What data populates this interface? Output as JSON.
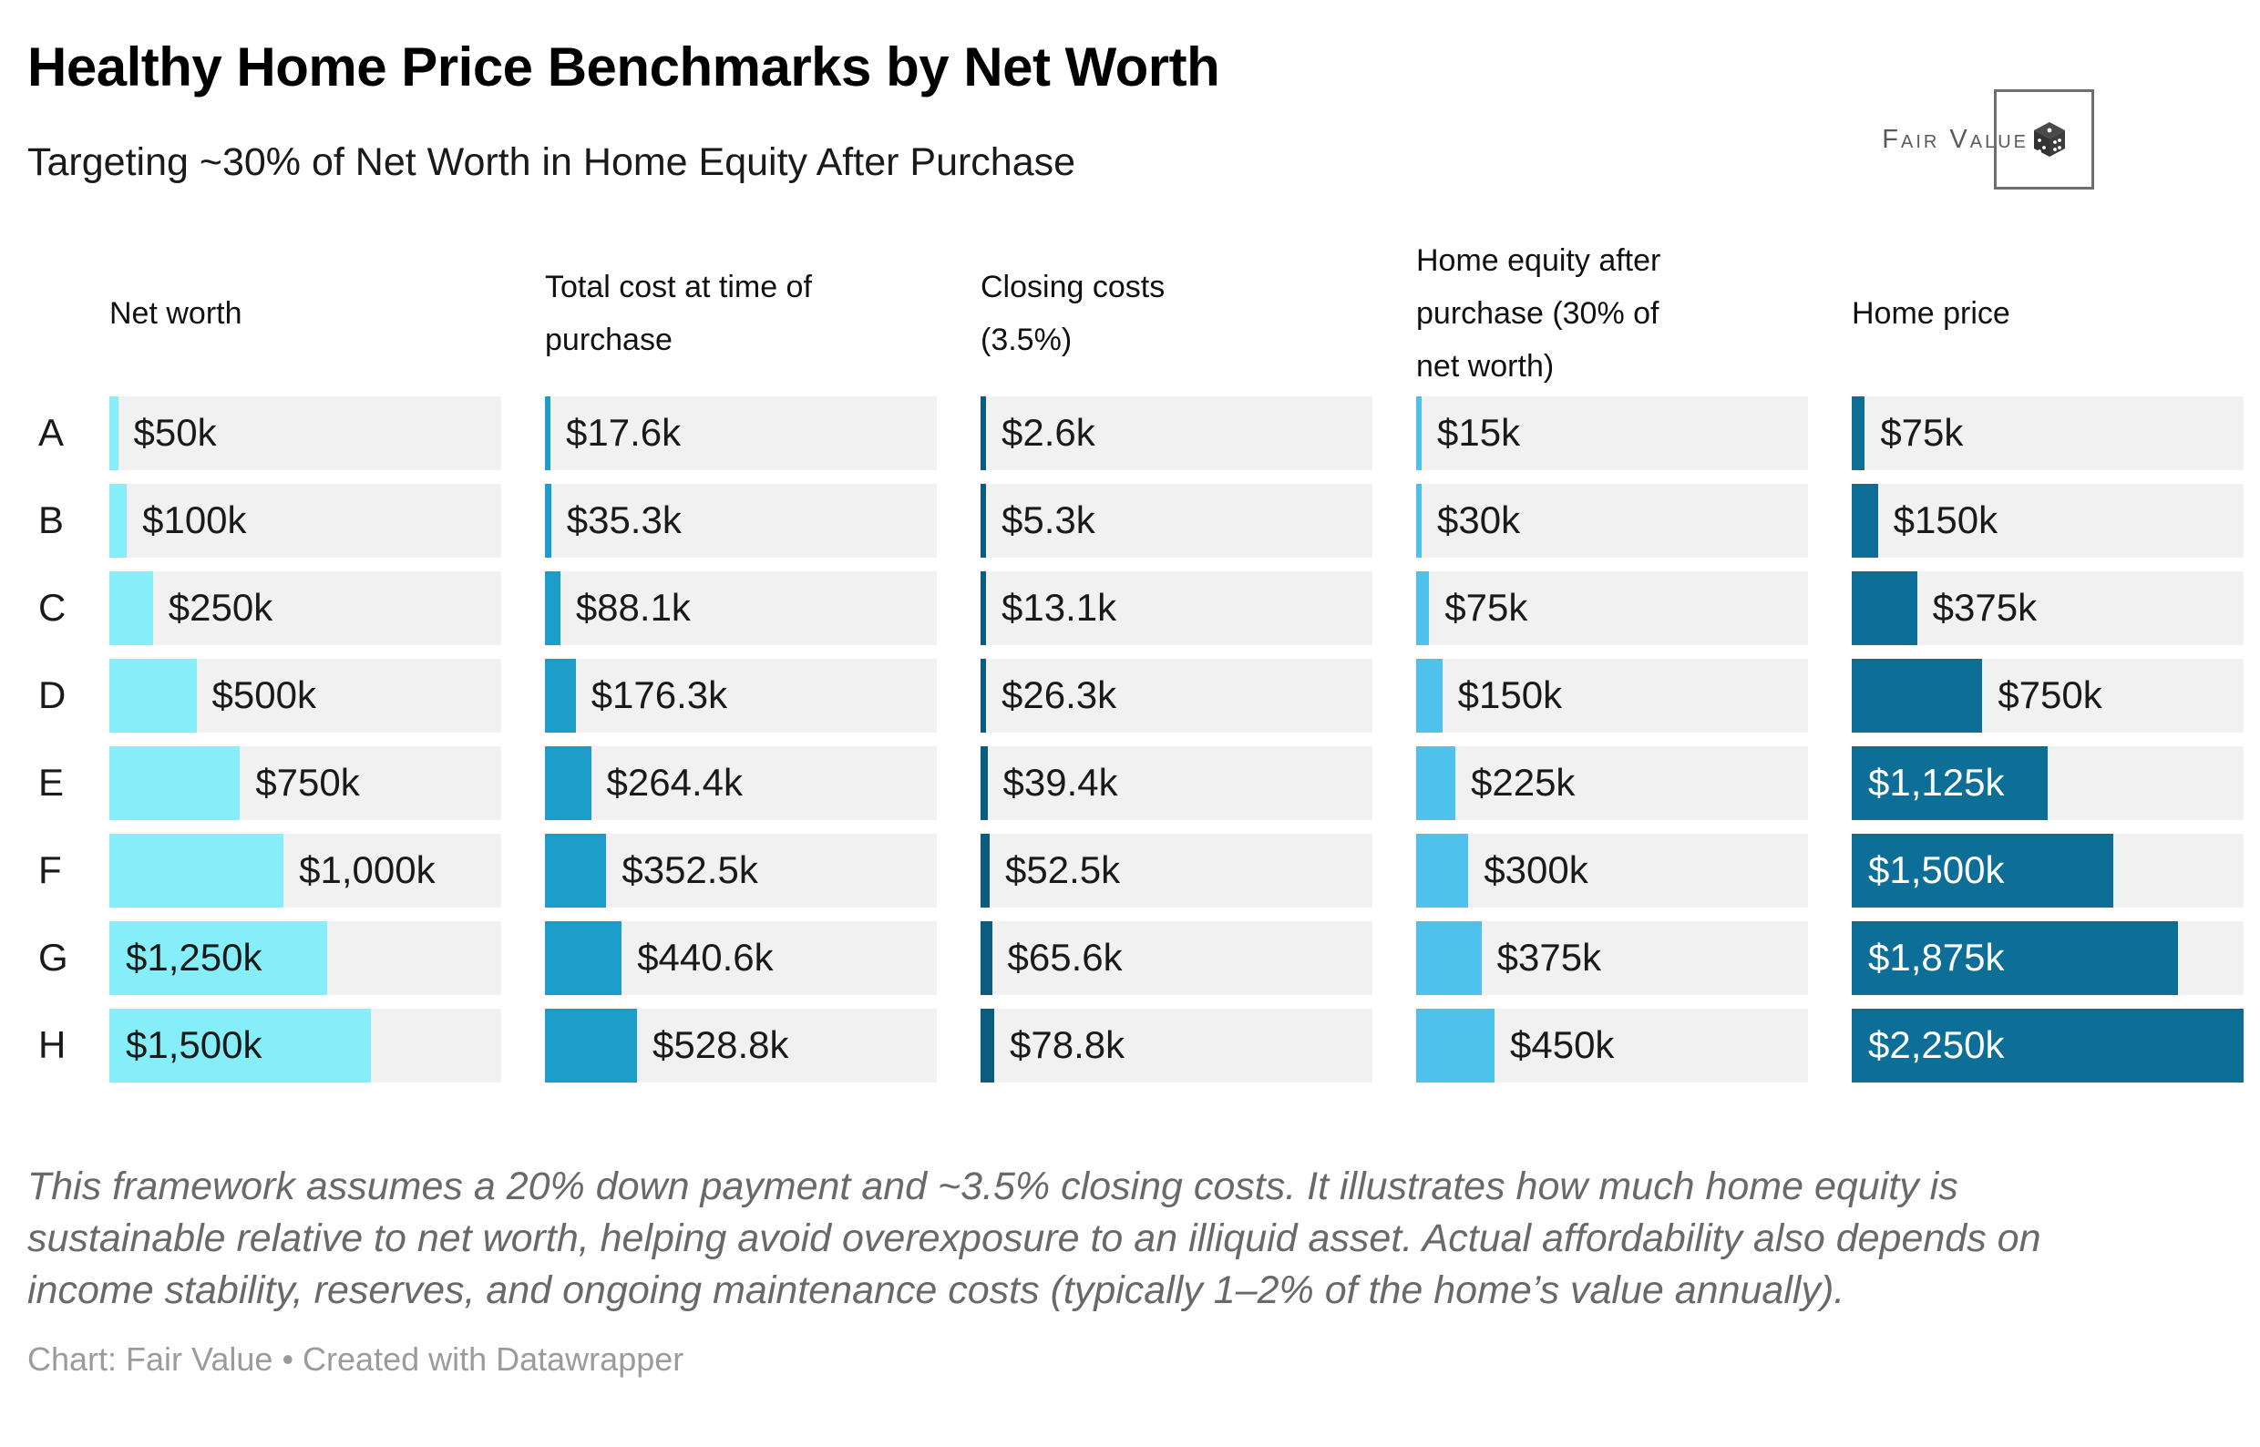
{
  "logo": {
    "brand": "Fair Value",
    "icon": "dice-icon"
  },
  "footer": {
    "note": "This framework assumes a 20% down payment and ~3.5% closing costs. It illustrates how much home equity is sustainable relative to net worth, helping avoid overexposure to an illiquid asset. Actual affordability also depends on income stability, reserves, and ongoing maintenance costs (typically 1–2% of the home’s value annually).",
    "credit": "Chart: Fair Value • Created with Datawrapper"
  },
  "chart_data": {
    "type": "bar",
    "orientation": "horizontal",
    "title": "Healthy Home Price Benchmarks by Net Worth",
    "subtitle": "Targeting ~30% of Net Worth in Home Equity After Purchase",
    "categories": [
      "A",
      "B",
      "C",
      "D",
      "E",
      "F",
      "G",
      "H"
    ],
    "axis_max": 2250,
    "value_unit": "$ thousands (k)",
    "track_color": "#f1f1f1",
    "series": [
      {
        "name": "Net worth",
        "name_lines": [
          "Net worth"
        ],
        "color": "#86EEF9",
        "values": [
          50,
          100,
          250,
          500,
          750,
          1000,
          1250,
          1500
        ],
        "labels": [
          "$50k",
          "$100k",
          "$250k",
          "$500k",
          "$750k",
          "$1,000k",
          "$1,250k",
          "$1,500k"
        ],
        "label_inside": [
          false,
          false,
          false,
          false,
          false,
          false,
          true,
          true
        ],
        "inside_label_color": "#1a1a1a"
      },
      {
        "name": "Total cost at time of purchase",
        "name_lines": [
          "Total cost at time of",
          "purchase"
        ],
        "color": "#1C9DCA",
        "values": [
          17.6,
          35.3,
          88.1,
          176.3,
          264.4,
          352.5,
          440.6,
          528.8
        ],
        "labels": [
          "$17.6k",
          "$35.3k",
          "$88.1k",
          "$176.3k",
          "$264.4k",
          "$352.5k",
          "$440.6k",
          "$528.8k"
        ],
        "label_inside": [
          false,
          false,
          false,
          false,
          false,
          false,
          false,
          false
        ],
        "inside_label_color": "#1a1a1a"
      },
      {
        "name": "Closing costs (3.5%)",
        "name_lines": [
          "Closing costs",
          "(3.5%)"
        ],
        "color": "#0C5C7E",
        "values": [
          2.6,
          5.3,
          13.1,
          26.3,
          39.4,
          52.5,
          65.6,
          78.8
        ],
        "labels": [
          "$2.6k",
          "$5.3k",
          "$13.1k",
          "$26.3k",
          "$39.4k",
          "$52.5k",
          "$65.6k",
          "$78.8k"
        ],
        "label_inside": [
          false,
          false,
          false,
          false,
          false,
          false,
          false,
          false
        ],
        "inside_label_color": "#1a1a1a"
      },
      {
        "name": "Home equity after purchase (30% of net worth)",
        "name_lines": [
          "Home equity after",
          "purchase (30% of",
          "net worth)"
        ],
        "color": "#4FC1ED",
        "values": [
          15,
          30,
          75,
          150,
          225,
          300,
          375,
          450
        ],
        "labels": [
          "$15k",
          "$30k",
          "$75k",
          "$150k",
          "$225k",
          "$300k",
          "$375k",
          "$450k"
        ],
        "label_inside": [
          false,
          false,
          false,
          false,
          false,
          false,
          false,
          false
        ],
        "inside_label_color": "#1a1a1a"
      },
      {
        "name": "Home price",
        "name_lines": [
          "Home price"
        ],
        "color": "#0D6F97",
        "values": [
          75,
          150,
          375,
          750,
          1125,
          1500,
          1875,
          2250
        ],
        "labels": [
          "$75k",
          "$150k",
          "$375k",
          "$750k",
          "$1,125k",
          "$1,500k",
          "$1,875k",
          "$2,250k"
        ],
        "label_inside": [
          false,
          false,
          false,
          false,
          true,
          true,
          true,
          true
        ],
        "inside_label_color": "#ffffff"
      }
    ],
    "legend_position": "none",
    "grid": false
  }
}
